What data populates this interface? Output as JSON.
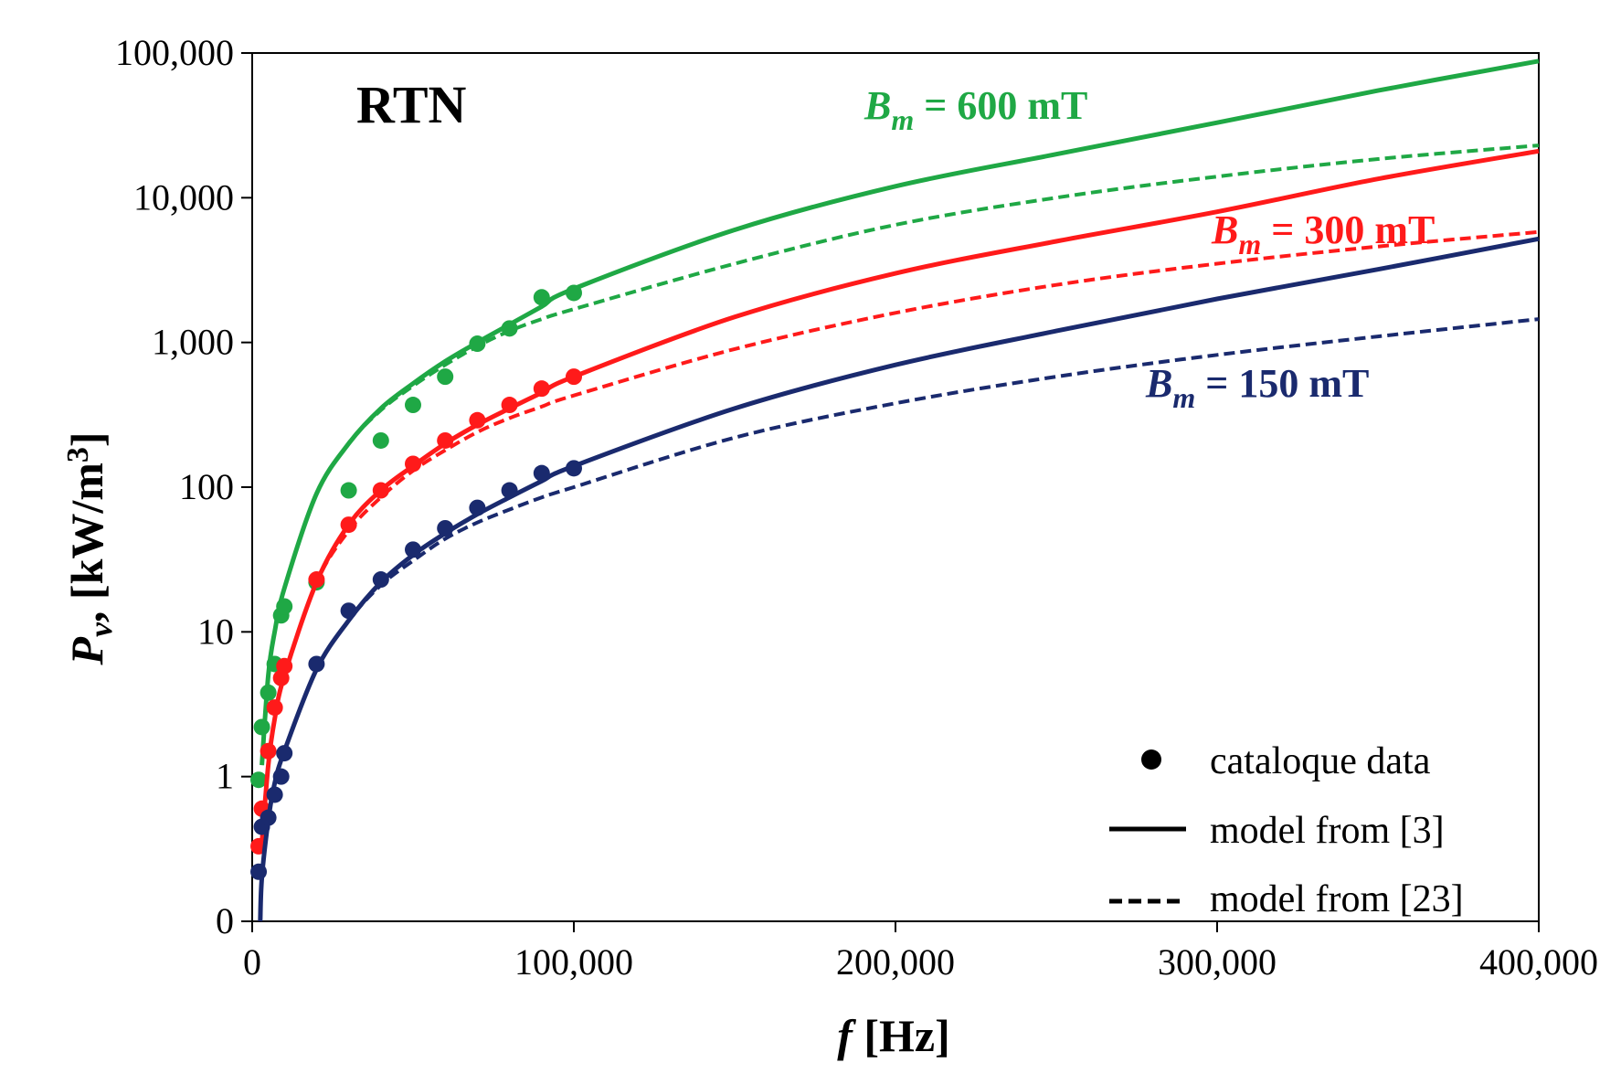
{
  "chart_data": {
    "type": "scatter",
    "title": "RTN",
    "xlabel": {
      "symbol": "f",
      "unit": "[Hz]"
    },
    "ylabel": {
      "symbol": "P",
      "sub": "v",
      "unit": ", [kW/m",
      "sup": "3",
      "close": "]"
    },
    "xscale": "linear",
    "yscale": "log",
    "xlim": [
      0,
      400000
    ],
    "ylim_display": [
      0,
      100000
    ],
    "x_ticks": [
      0,
      100000,
      200000,
      300000,
      400000
    ],
    "x_tick_labels": [
      "0",
      "100,000",
      "200,000",
      "300,000",
      "400,000"
    ],
    "y_ticks": [
      0.1,
      1,
      10,
      100,
      1000,
      10000,
      100000
    ],
    "y_tick_labels": [
      "0",
      "1",
      "10",
      "100",
      "1,000",
      "10,000",
      "100,000"
    ],
    "series": [
      {
        "name": "Bm = 600 mT",
        "label_parts": {
          "B": "B",
          "sub": "m",
          "rest": " = 600 mT"
        },
        "color": "#1fa845",
        "catalogue": {
          "x": [
            2000,
            3000,
            5000,
            7000,
            9000,
            10000,
            20000,
            30000,
            40000,
            50000,
            60000,
            70000,
            80000,
            90000,
            100000
          ],
          "y": [
            0.95,
            2.2,
            3.8,
            6.0,
            13,
            15,
            22,
            95,
            210,
            370,
            580,
            980,
            1250,
            2050,
            2200
          ]
        },
        "model_3": {
          "x": [
            3000,
            5000,
            7000,
            10000,
            20000,
            30000,
            40000,
            50000,
            60000,
            70000,
            80000,
            90000,
            100000,
            150000,
            200000,
            250000,
            300000,
            350000,
            400000
          ],
          "y": [
            1.2,
            5,
            10,
            20,
            90,
            200,
            350,
            520,
            740,
            1000,
            1330,
            1770,
            2350,
            6000,
            12000,
            20000,
            33000,
            55000,
            88000
          ]
        },
        "model_23": {
          "x": [
            3000,
            5000,
            7000,
            10000,
            20000,
            30000,
            40000,
            50000,
            60000,
            70000,
            80000,
            90000,
            100000,
            150000,
            200000,
            250000,
            300000,
            350000,
            400000
          ],
          "y": [
            1.2,
            5,
            10,
            20,
            90,
            200,
            340,
            500,
            700,
            940,
            1200,
            1450,
            1700,
            3500,
            6500,
            10000,
            14000,
            18500,
            23000
          ]
        }
      },
      {
        "name": "Bm = 300 mT",
        "label_parts": {
          "B": "B",
          "sub": "m",
          "rest": " = 300 mT"
        },
        "color": "#ff1a1a",
        "catalogue": {
          "x": [
            2000,
            3000,
            5000,
            7000,
            9000,
            10000,
            20000,
            30000,
            40000,
            50000,
            60000,
            70000,
            80000,
            90000,
            100000
          ],
          "y": [
            0.33,
            0.6,
            1.5,
            3.0,
            4.8,
            5.8,
            23,
            55,
            95,
            145,
            210,
            290,
            370,
            480,
            580
          ]
        },
        "model_3": {
          "x": [
            3000,
            5000,
            7000,
            10000,
            20000,
            30000,
            40000,
            50000,
            60000,
            70000,
            80000,
            90000,
            100000,
            150000,
            200000,
            250000,
            300000,
            350000,
            400000
          ],
          "y": [
            0.35,
            1.2,
            2.5,
            5,
            22,
            55,
            95,
            140,
            200,
            270,
            350,
            450,
            580,
            1500,
            3000,
            5000,
            8000,
            13500,
            21000
          ]
        },
        "model_23": {
          "x": [
            3000,
            5000,
            7000,
            10000,
            20000,
            30000,
            40000,
            50000,
            60000,
            70000,
            80000,
            90000,
            100000,
            150000,
            200000,
            250000,
            300000,
            350000,
            400000
          ],
          "y": [
            0.35,
            1.2,
            2.5,
            5,
            22,
            50,
            85,
            130,
            180,
            240,
            300,
            360,
            430,
            900,
            1600,
            2500,
            3500,
            4600,
            5800
          ]
        }
      },
      {
        "name": "Bm = 150  mT",
        "label_parts": {
          "B": "B",
          "sub": "m",
          "rest": " = 150  mT"
        },
        "color": "#1a2a6e",
        "catalogue": {
          "x": [
            2000,
            3000,
            5000,
            7000,
            9000,
            10000,
            20000,
            30000,
            40000,
            50000,
            60000,
            70000,
            80000,
            90000,
            100000
          ],
          "y": [
            0.22,
            0.45,
            0.52,
            0.75,
            1.0,
            1.45,
            6.0,
            14,
            23,
            37,
            52,
            72,
            95,
            125,
            135
          ]
        },
        "model_3": {
          "x": [
            2500,
            3000,
            5000,
            7000,
            10000,
            20000,
            30000,
            40000,
            50000,
            60000,
            70000,
            80000,
            90000,
            100000,
            150000,
            200000,
            250000,
            300000,
            350000,
            400000
          ],
          "y": [
            0.1,
            0.2,
            0.5,
            0.9,
            1.5,
            5.5,
            12,
            22,
            34,
            48,
            65,
            85,
            110,
            140,
            350,
            700,
            1200,
            2000,
            3200,
            5200
          ]
        },
        "model_23": {
          "x": [
            2500,
            3000,
            5000,
            7000,
            10000,
            20000,
            30000,
            40000,
            50000,
            60000,
            70000,
            80000,
            90000,
            100000,
            150000,
            200000,
            250000,
            300000,
            350000,
            400000
          ],
          "y": [
            0.1,
            0.2,
            0.5,
            0.9,
            1.5,
            5.5,
            12,
            21,
            31,
            44,
            57,
            70,
            85,
            100,
            220,
            380,
            580,
            820,
            1100,
            1450
          ]
        }
      }
    ],
    "legend": {
      "position": "bottom-right",
      "items": [
        {
          "marker": "dot",
          "label": "cataloque data"
        },
        {
          "marker": "solid",
          "label": "model from [3]"
        },
        {
          "marker": "dashed",
          "label": "model from [23]"
        }
      ]
    }
  }
}
